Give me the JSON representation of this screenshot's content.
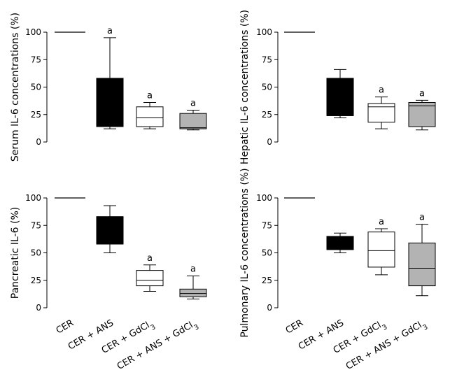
{
  "chart_data": [
    {
      "type": "box",
      "panel": "top-left",
      "ylabel": "Serum IL-6 concentrations (%)",
      "ylim": [
        0,
        100
      ],
      "yticks": [
        0,
        25,
        50,
        75,
        100
      ],
      "categories": [
        "CER",
        "CER + ANS",
        "CER + GdCl3",
        "CER + ANS + GdCl3"
      ],
      "show_xlabels": false,
      "boxes": [
        {
          "category": "CER",
          "min": 100,
          "q1": 100,
          "median": 100,
          "q3": 100,
          "max": 100,
          "fill": "#000000",
          "sig": ""
        },
        {
          "category": "CER + ANS",
          "min": 12,
          "q1": 14,
          "median": 14,
          "q3": 58,
          "max": 95,
          "fill": "#000000",
          "sig": "a"
        },
        {
          "category": "CER + GdCl3",
          "min": 12,
          "q1": 14,
          "median": 22,
          "q3": 32,
          "max": 36,
          "fill": "#ffffff",
          "sig": "a"
        },
        {
          "category": "CER + ANS + GdCl3",
          "min": 11,
          "q1": 12,
          "median": 13,
          "q3": 26,
          "max": 29,
          "fill": "#b3b3b3",
          "sig": "a"
        }
      ]
    },
    {
      "type": "box",
      "panel": "top-right",
      "ylabel": "Hepatic IL-6 concentrations (%)",
      "ylim": [
        0,
        100
      ],
      "yticks": [
        0,
        25,
        50,
        75,
        100
      ],
      "categories": [
        "CER",
        "CER + ANS",
        "CER + GdCl3",
        "CER + ANS + GdCl3"
      ],
      "show_xlabels": false,
      "boxes": [
        {
          "category": "CER",
          "min": 100,
          "q1": 100,
          "median": 100,
          "q3": 100,
          "max": 100,
          "fill": "#000000",
          "sig": ""
        },
        {
          "category": "CER + ANS",
          "min": 22,
          "q1": 24,
          "median": 24,
          "q3": 58,
          "max": 66,
          "fill": "#000000",
          "sig": ""
        },
        {
          "category": "CER + GdCl3",
          "min": 12,
          "q1": 18,
          "median": 32,
          "q3": 35,
          "max": 41,
          "fill": "#ffffff",
          "sig": "a"
        },
        {
          "category": "CER + ANS + GdCl3",
          "min": 11,
          "q1": 14,
          "median": 33,
          "q3": 36,
          "max": 38,
          "fill": "#b3b3b3",
          "sig": "a"
        }
      ]
    },
    {
      "type": "box",
      "panel": "bottom-left",
      "ylabel": "Pancreatic IL-6 (%)",
      "ylim": [
        0,
        100
      ],
      "yticks": [
        0,
        25,
        50,
        75,
        100
      ],
      "categories": [
        "CER",
        "CER + ANS",
        "CER + GdCl3",
        "CER + ANS + GdCl3"
      ],
      "show_xlabels": true,
      "boxes": [
        {
          "category": "CER",
          "min": 100,
          "q1": 100,
          "median": 100,
          "q3": 100,
          "max": 100,
          "fill": "#000000",
          "sig": ""
        },
        {
          "category": "CER + ANS",
          "min": 50,
          "q1": 58,
          "median": 58,
          "q3": 83,
          "max": 93,
          "fill": "#000000",
          "sig": ""
        },
        {
          "category": "CER + GdCl3",
          "min": 15,
          "q1": 20,
          "median": 25,
          "q3": 34,
          "max": 39,
          "fill": "#ffffff",
          "sig": "a"
        },
        {
          "category": "CER + ANS + GdCl3",
          "min": 8,
          "q1": 10,
          "median": 13,
          "q3": 17,
          "max": 29,
          "fill": "#b3b3b3",
          "sig": "a"
        }
      ]
    },
    {
      "type": "box",
      "panel": "bottom-right",
      "ylabel": "Pulmonary IL-6 concentrations (%)",
      "ylim": [
        0,
        100
      ],
      "yticks": [
        0,
        25,
        50,
        75,
        100
      ],
      "categories": [
        "CER",
        "CER + ANS",
        "CER + GdCl3",
        "CER + ANS + GdCl3"
      ],
      "show_xlabels": true,
      "boxes": [
        {
          "category": "CER",
          "min": 100,
          "q1": 100,
          "median": 100,
          "q3": 100,
          "max": 100,
          "fill": "#000000",
          "sig": ""
        },
        {
          "category": "CER + ANS",
          "min": 50,
          "q1": 53,
          "median": 53,
          "q3": 65,
          "max": 68,
          "fill": "#000000",
          "sig": ""
        },
        {
          "category": "CER + GdCl3",
          "min": 30,
          "q1": 37,
          "median": 52,
          "q3": 69,
          "max": 72,
          "fill": "#ffffff",
          "sig": "a"
        },
        {
          "category": "CER + ANS + GdCl3",
          "min": 11,
          "q1": 20,
          "median": 36,
          "q3": 59,
          "max": 76,
          "fill": "#b3b3b3",
          "sig": "a"
        }
      ]
    }
  ]
}
